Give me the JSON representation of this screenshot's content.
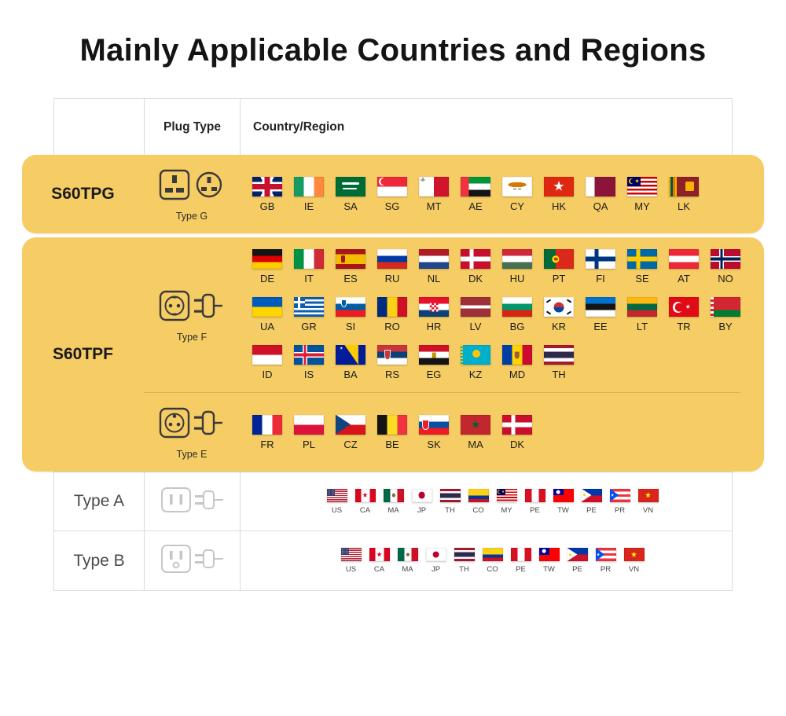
{
  "title": "Mainly Applicable Countries and Regions",
  "header": {
    "plug_type": "Plug Type",
    "country_region": "Country/Region"
  },
  "colors": {
    "highlight": "#F6CD64",
    "border": "#DBDBDB"
  },
  "rows": [
    {
      "model": "S60TPG",
      "highlight": true,
      "sections": [
        {
          "plug_label": "Type G",
          "plug_icon": "type-g",
          "flag_rows": [
            [
              "GB",
              "IE",
              "SA",
              "SG",
              "MT",
              "AE",
              "CY",
              "HK",
              "QA",
              "MY",
              "LK"
            ]
          ]
        }
      ]
    },
    {
      "model": "S60TPF",
      "highlight": true,
      "sections": [
        {
          "plug_label": "Type F",
          "plug_icon": "type-f",
          "flag_rows": [
            [
              "DE",
              "IT",
              "ES",
              "RU",
              "NL",
              "DK",
              "HU",
              "PT",
              "FI",
              "SE",
              "AT",
              "NO"
            ],
            [
              "UA",
              "GR",
              "SI",
              "RO",
              "HR",
              "LV",
              "BG",
              "KR",
              "EE",
              "LT",
              "TR",
              "BY"
            ],
            [
              "ID",
              "IS",
              "BA",
              "RS",
              "EG",
              "KZ",
              "MD",
              "TH"
            ]
          ]
        },
        {
          "plug_label": "Type E",
          "plug_icon": "type-e",
          "flag_rows": [
            [
              "FR",
              "PL",
              "CZ",
              "BE",
              "SK",
              "MA",
              "DK"
            ]
          ]
        }
      ]
    },
    {
      "model": "Type A",
      "highlight": false,
      "sections": [
        {
          "plug_label": "",
          "plug_icon": "type-a",
          "flag_rows": [
            [
              "US",
              "CA",
              {
                "label": "MA",
                "icon": "mx"
              },
              "JP",
              "TH",
              "CO",
              "MY",
              "PE",
              "TW",
              {
                "label": "PE",
                "icon": "ph"
              },
              "PR",
              "VN"
            ]
          ]
        }
      ]
    },
    {
      "model": "Type B",
      "highlight": false,
      "sections": [
        {
          "plug_label": "",
          "plug_icon": "type-b",
          "flag_rows": [
            [
              "US",
              "CA",
              {
                "label": "MA",
                "icon": "mx"
              },
              "JP",
              "TH",
              "CO",
              "PE",
              "TW",
              {
                "label": "PE",
                "icon": "ph"
              },
              "PR",
              "VN"
            ]
          ]
        }
      ]
    }
  ]
}
